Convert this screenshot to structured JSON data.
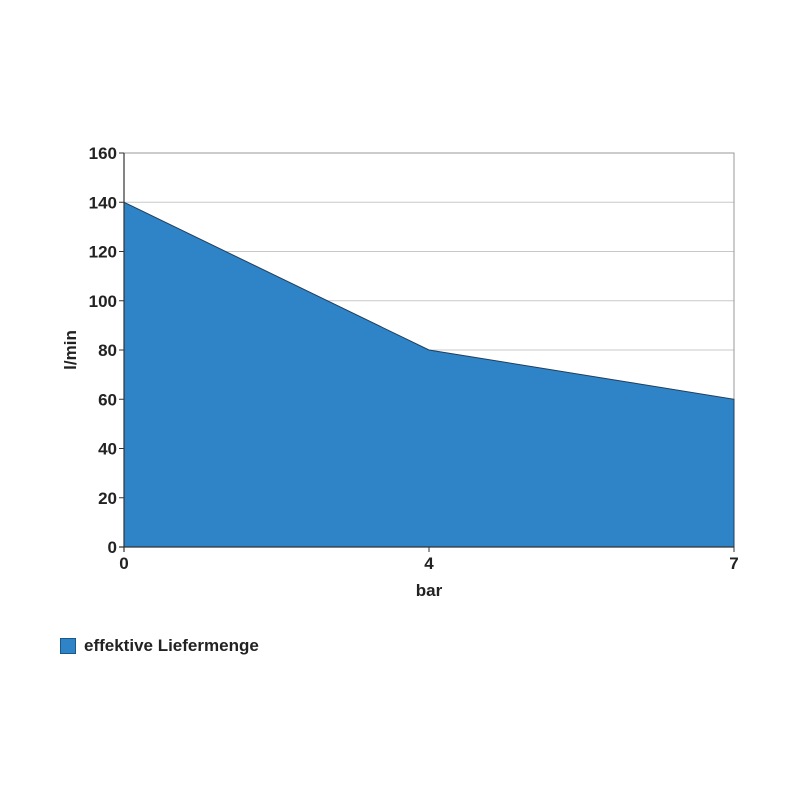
{
  "chart_data": {
    "type": "area",
    "categories": [
      "0",
      "4",
      "7"
    ],
    "series": [
      {
        "name": "effektive Liefermenge",
        "values": [
          140,
          80,
          60
        ],
        "color": "#2e84c6"
      }
    ],
    "xlabel": "bar",
    "ylabel": "l/min",
    "ylim": [
      0,
      160
    ],
    "yticks": [
      0,
      20,
      40,
      60,
      80,
      100,
      120,
      140,
      160
    ],
    "grid": true,
    "legend": "bottom-left"
  }
}
